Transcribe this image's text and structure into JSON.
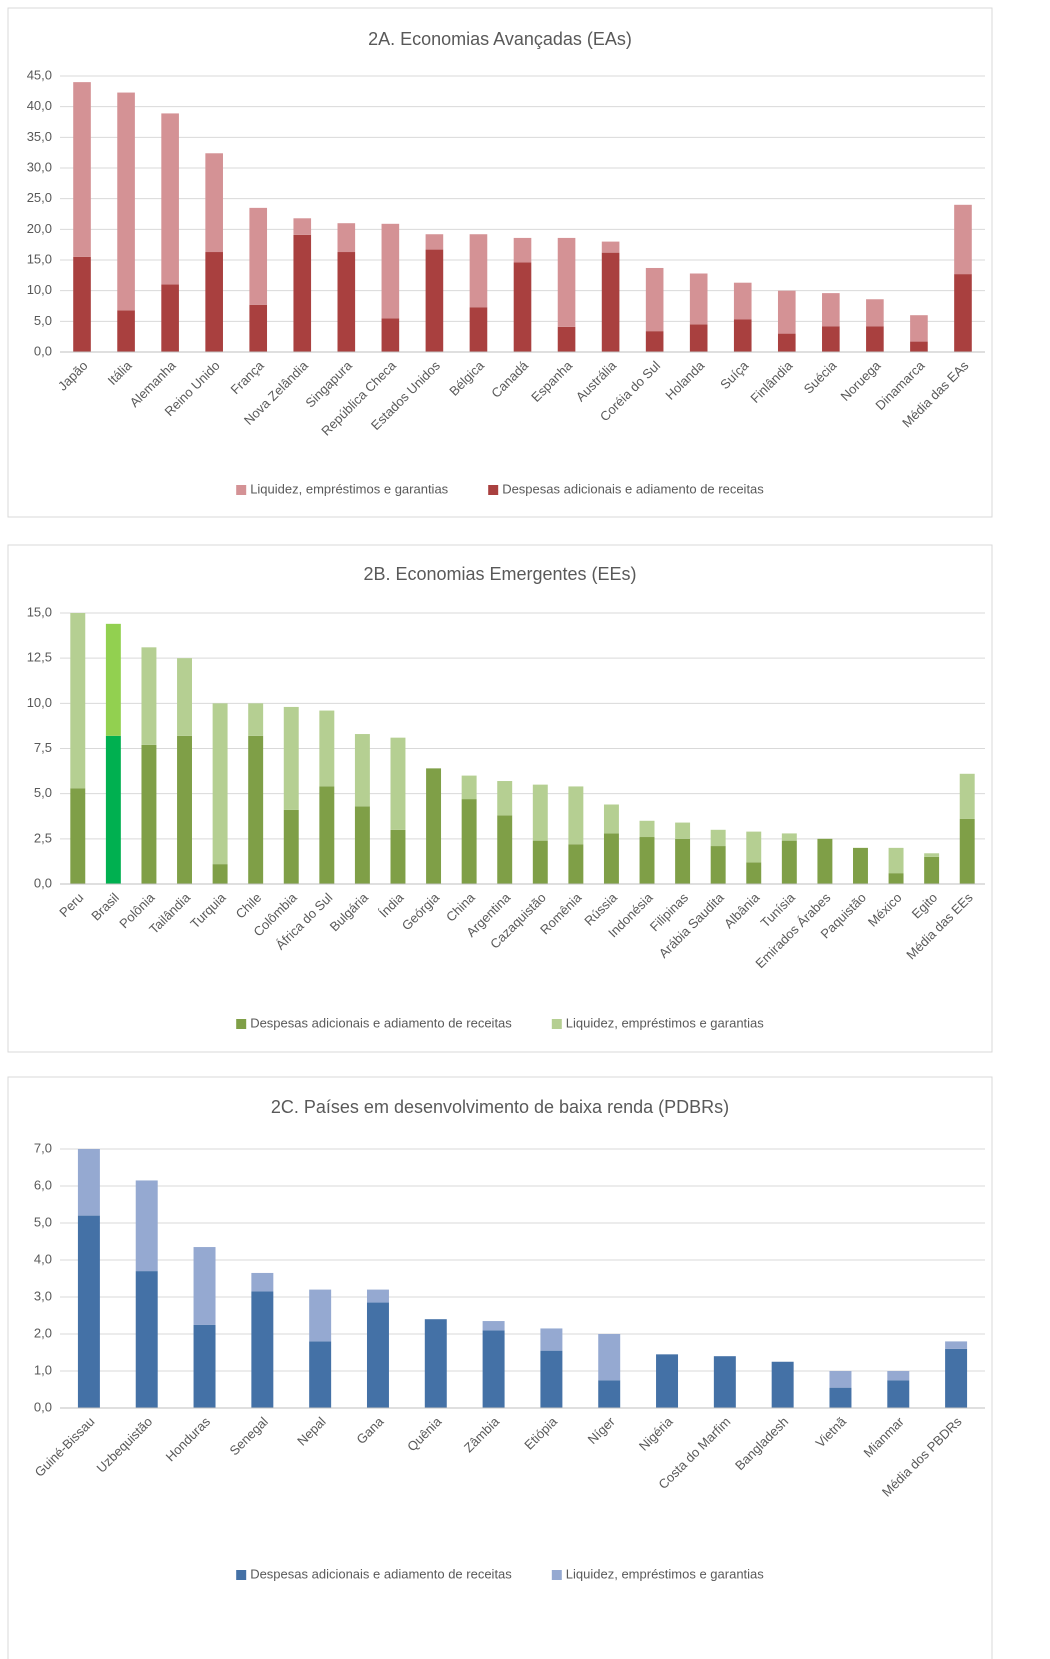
{
  "chart_data": [
    {
      "type": "stacked_bar",
      "title": "2A. Economias Avançadas (EAs)",
      "categories": [
        "Japão",
        "Itália",
        "Alemanha",
        "Reino Unido",
        "França",
        "Nova Zelândia",
        "Singapura",
        "República Checa",
        "Estados Unidos",
        "Bélgica",
        "Canadá",
        "Espanha",
        "Austrália",
        "Coréia do Sul",
        "Holanda",
        "Suíça",
        "Finlândia",
        "Suécia",
        "Noruega",
        "Dinamarca",
        "Média das EAs"
      ],
      "series": [
        {
          "name": "Despesas adicionais e adiamento de receitas",
          "color": "#a9403f",
          "values": [
            15.5,
            6.8,
            11.0,
            16.3,
            7.7,
            19.1,
            16.3,
            5.5,
            16.7,
            7.3,
            14.6,
            4.1,
            16.2,
            3.4,
            4.5,
            5.3,
            3.0,
            4.2,
            4.2,
            1.7,
            12.7
          ]
        },
        {
          "name": "Liquidez, empréstimos e garantias",
          "color": "#d49295",
          "values": [
            28.5,
            35.5,
            27.9,
            16.1,
            15.8,
            2.7,
            4.7,
            15.4,
            2.5,
            11.9,
            4.0,
            14.5,
            1.8,
            10.3,
            8.3,
            6.0,
            7.0,
            5.4,
            4.4,
            4.3,
            11.3
          ]
        }
      ],
      "legend_reversed": true,
      "ylim": [
        0,
        45
      ],
      "yticks": [
        {
          "value": 0,
          "label": "0,0"
        },
        {
          "value": 5,
          "label": "5,0"
        },
        {
          "value": 10,
          "label": "10,0"
        },
        {
          "value": 15,
          "label": "15,0"
        },
        {
          "value": 20,
          "label": "20,0"
        },
        {
          "value": 25,
          "label": "25,0"
        },
        {
          "value": 30,
          "label": "30,0"
        },
        {
          "value": 35,
          "label": "35,0"
        },
        {
          "value": 40,
          "label": "40,0"
        },
        {
          "value": 45,
          "label": "45,0"
        }
      ],
      "grid": true
    },
    {
      "type": "stacked_bar",
      "title": "2B. Economias Emergentes (EEs)",
      "categories": [
        "Peru",
        "Brasil",
        "Polônia",
        "Tailândia",
        "Turquia",
        "Chile",
        "Colômbia",
        "África do Sul",
        "Bulgária",
        "Índia",
        "Geórgia",
        "China",
        "Argentina",
        "Cazaquistão",
        "Romênia",
        "Rússia",
        "Indonésia",
        "Filipinas",
        "Arábia Saudita",
        "Albânia",
        "Tunísia",
        "Emirados Árabes",
        "Paquistão",
        "México",
        "Egito",
        "Média das EEs"
      ],
      "series": [
        {
          "name": "Despesas adicionais e adiamento de receitas",
          "color": "#7f9f47",
          "highlight_color": "#00b050",
          "values": [
            5.3,
            8.2,
            7.7,
            8.2,
            1.1,
            8.2,
            4.1,
            5.4,
            4.3,
            3.0,
            6.4,
            4.7,
            3.8,
            2.4,
            2.2,
            2.8,
            2.6,
            2.5,
            2.1,
            1.2,
            2.4,
            2.5,
            2.0,
            0.6,
            1.5,
            3.6
          ]
        },
        {
          "name": "Liquidez, empréstimos e garantias",
          "color": "#b5cf92",
          "highlight_color": "#92d050",
          "values": [
            9.7,
            6.2,
            5.4,
            4.3,
            8.9,
            1.8,
            5.7,
            4.2,
            4.0,
            5.1,
            0,
            1.3,
            1.9,
            3.1,
            3.2,
            1.6,
            0.9,
            0.9,
            0.9,
            1.7,
            0.4,
            0,
            0,
            1.4,
            0.2,
            2.5
          ]
        }
      ],
      "highlight_index": 1,
      "legend_reversed": false,
      "ylim": [
        0,
        15
      ],
      "yticks": [
        {
          "value": 0,
          "label": "0,0"
        },
        {
          "value": 2.5,
          "label": "2,5"
        },
        {
          "value": 5,
          "label": "5,0"
        },
        {
          "value": 7.5,
          "label": "7,5"
        },
        {
          "value": 10,
          "label": "10,0"
        },
        {
          "value": 12.5,
          "label": "12,5"
        },
        {
          "value": 15,
          "label": "15,0"
        }
      ],
      "grid": true
    },
    {
      "type": "stacked_bar",
      "title": "2C. Países em desenvolvimento de baixa renda (PDBRs)",
      "categories": [
        "Guiné-Bissau",
        "Uzbequistão",
        "Honduras",
        "Senegal",
        "Nepal",
        "Gana",
        "Quênia",
        "Zâmbia",
        "Etiópia",
        "Níger",
        "Nigéria",
        "Costa do Marfim",
        "Bangladesh",
        "Vietnã",
        "Mianmar",
        "Média dos PBDRs"
      ],
      "series": [
        {
          "name": "Despesas adicionais e adiamento de receitas",
          "color": "#4471a6",
          "values": [
            5.2,
            3.7,
            2.25,
            3.15,
            1.8,
            2.85,
            2.4,
            2.1,
            1.55,
            0.75,
            1.45,
            1.4,
            1.25,
            0.55,
            0.75,
            1.6
          ]
        },
        {
          "name": "Liquidez, empréstimos e garantias",
          "color": "#95a9d1",
          "values": [
            1.8,
            2.45,
            2.1,
            0.5,
            1.4,
            0.35,
            0,
            0.25,
            0.6,
            1.25,
            0,
            0,
            0,
            0.45,
            0.25,
            0.2
          ]
        }
      ],
      "legend_reversed": false,
      "ylim": [
        0,
        7
      ],
      "yticks": [
        {
          "value": 0,
          "label": "0,0"
        },
        {
          "value": 1,
          "label": "1,0"
        },
        {
          "value": 2,
          "label": "2,0"
        },
        {
          "value": 3,
          "label": "3,0"
        },
        {
          "value": 4,
          "label": "4,0"
        },
        {
          "value": 5,
          "label": "5,0"
        },
        {
          "value": 6,
          "label": "6,0"
        },
        {
          "value": 7,
          "label": "7,0"
        }
      ],
      "grid": true
    }
  ]
}
